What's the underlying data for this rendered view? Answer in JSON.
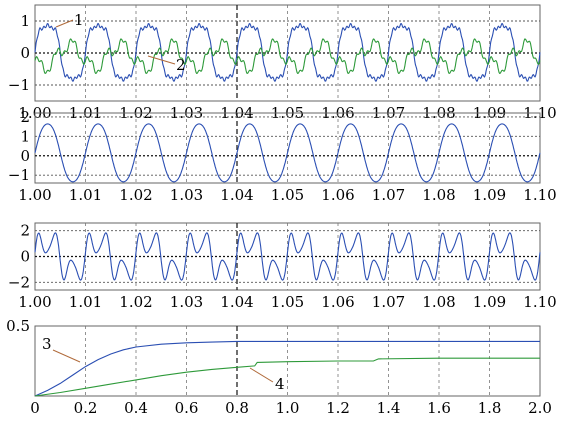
{
  "chart_data": [
    {
      "type": "line",
      "xlim": [
        1.0,
        1.1
      ],
      "ylim": [
        -1.5,
        1.5
      ],
      "x_ticks": [
        "1.00",
        "1.01",
        "1.02",
        "1.03",
        "1.04",
        "1.05",
        "1.06",
        "1.07",
        "1.08",
        "1.09",
        "1.10"
      ],
      "y_ticks": [
        {
          "value": 1,
          "label": "1"
        },
        {
          "value": 0,
          "label": "0"
        },
        {
          "value": -1,
          "label": "−1"
        }
      ],
      "grid": true,
      "series": [
        {
          "name": "1",
          "color": "#2b4fb3",
          "period": 0.01,
          "amplitude": 1.0,
          "waveform": "distorted periodic"
        },
        {
          "name": "2",
          "color": "#2e9a3a",
          "period": 0.01,
          "amplitude": 0.4,
          "offset": -0.1,
          "waveform": "distorted periodic"
        }
      ],
      "annotations": [
        "1",
        "2"
      ]
    },
    {
      "type": "line",
      "xlim": [
        1.0,
        1.1
      ],
      "ylim": [
        -1.4,
        2.2
      ],
      "x_ticks": [
        "1.00",
        "1.01",
        "1.02",
        "1.03",
        "1.04",
        "1.05",
        "1.06",
        "1.07",
        "1.08",
        "1.09",
        "1.10"
      ],
      "y_ticks": [
        {
          "value": 2,
          "label": "2"
        },
        {
          "value": 1,
          "label": "1"
        },
        {
          "value": 0,
          "label": "0"
        },
        {
          "value": -1,
          "label": "−1"
        }
      ],
      "grid": true,
      "series": [
        {
          "color": "#2b4fb3",
          "period": 0.01,
          "amplitude": 1.55,
          "offset": 0.15,
          "waveform": "sinusoid"
        }
      ]
    },
    {
      "type": "line",
      "xlim": [
        1.0,
        1.1
      ],
      "ylim": [
        -2.6,
        2.6
      ],
      "x_ticks": [
        "1.00",
        "1.01",
        "1.02",
        "1.03",
        "1.04",
        "1.05",
        "1.06",
        "1.07",
        "1.08",
        "1.09",
        "1.10"
      ],
      "y_ticks": [
        {
          "value": 2,
          "label": "2"
        },
        {
          "value": 0,
          "label": "0"
        },
        {
          "value": -2,
          "label": "−2"
        }
      ],
      "grid": true,
      "series": [
        {
          "color": "#2b4fb3",
          "period": 0.01,
          "amplitude": 2.1,
          "waveform": "multi-harmonic"
        }
      ]
    },
    {
      "type": "line",
      "xlim": [
        0,
        2.0
      ],
      "ylim": [
        0,
        0.5
      ],
      "x_ticks": [
        "0",
        "0.2",
        "0.4",
        "0.6",
        "0.8",
        "1.0",
        "1.2",
        "1.4",
        "1.6",
        "1.8",
        "2.0"
      ],
      "y_ticks": [
        {
          "value": 0.5,
          "label": "0.5"
        }
      ],
      "grid": true,
      "series": [
        {
          "name": "3",
          "color": "#2b4fb3",
          "x": [
            0,
            0.05,
            0.1,
            0.15,
            0.2,
            0.25,
            0.3,
            0.35,
            0.4,
            0.5,
            0.6,
            0.7,
            0.8,
            1.0,
            1.5,
            2.0
          ],
          "y": [
            0.0,
            0.04,
            0.09,
            0.15,
            0.21,
            0.26,
            0.3,
            0.33,
            0.35,
            0.37,
            0.38,
            0.385,
            0.39,
            0.39,
            0.39,
            0.39
          ]
        },
        {
          "name": "4",
          "color": "#2e9a3a",
          "x": [
            0,
            0.1,
            0.2,
            0.3,
            0.4,
            0.5,
            0.6,
            0.7,
            0.8,
            0.87,
            0.88,
            1.0,
            1.2,
            1.34,
            1.36,
            1.6,
            2.0
          ],
          "y": [
            0.0,
            0.025,
            0.055,
            0.085,
            0.115,
            0.145,
            0.17,
            0.19,
            0.205,
            0.215,
            0.24,
            0.245,
            0.25,
            0.25,
            0.265,
            0.27,
            0.27
          ]
        }
      ],
      "annotations": [
        "3",
        "4"
      ]
    }
  ]
}
